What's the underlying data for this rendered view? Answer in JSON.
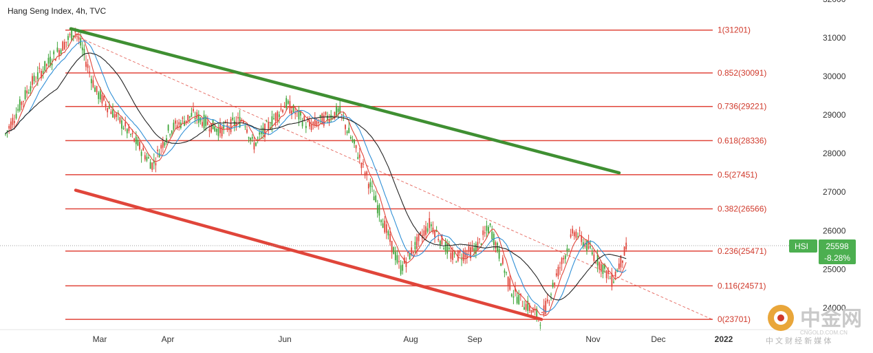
{
  "header": {
    "title": "Hang Seng Index, 4h, TVC"
  },
  "price_tag": {
    "symbol": "HSI",
    "price": "25598",
    "change": "-8.28%"
  },
  "watermark": {
    "name": "中金网",
    "domain": "CNGOLD.COM.CN",
    "tagline": "中 文 财 经 新 媒 体"
  },
  "colors": {
    "background": "#ffffff",
    "fib_line": "#e0453a",
    "upper_trend": "#3f8f32",
    "lower_trend": "#e0453a",
    "candle_up": "#3fa63a",
    "candle_down": "#e0453a",
    "ma_fast": "#e0453a",
    "ma_mid": "#2f8fd6",
    "ma_slow": "#222222",
    "price_tag": "#4caf50",
    "watermark": "#c9c9c9"
  },
  "chart_data": {
    "type": "line",
    "title": "Hang Seng Index, 4h, TVC",
    "x_labels": [
      "Mar",
      "Apr",
      "Jun",
      "Aug",
      "Sep",
      "Nov",
      "Dec",
      "2022"
    ],
    "y_ticks": [
      24000,
      25000,
      26000,
      27000,
      28000,
      29000,
      30000,
      31000,
      32000
    ],
    "ylim": [
      23200,
      32100
    ],
    "y_axis_position": "right",
    "last_price": 25598,
    "fibonacci_levels": [
      {
        "ratio": "1",
        "value": 31201,
        "label": "1(31201)"
      },
      {
        "ratio": "0.852",
        "value": 30091,
        "label": "0.852(30091)"
      },
      {
        "ratio": "0.736",
        "value": 29221,
        "label": "0.736(29221)"
      },
      {
        "ratio": "0.618",
        "value": 28336,
        "label": "0.618(28336)"
      },
      {
        "ratio": "0.5",
        "value": 27451,
        "label": "0.5(27451)"
      },
      {
        "ratio": "0.382",
        "value": 26566,
        "label": "0.382(26566)"
      },
      {
        "ratio": "0.236",
        "value": 25471,
        "label": "0.236(25471)"
      },
      {
        "ratio": "0.116",
        "value": 24571,
        "label": "0.116(24571)"
      },
      {
        "ratio": "0",
        "value": 23701,
        "label": "0(23701)"
      }
    ],
    "price_path": [
      [
        "early Feb",
        28500
      ],
      [
        "mid Feb",
        29800
      ],
      [
        "late Feb",
        31201
      ],
      [
        "early Mar",
        29600
      ],
      [
        "mid Mar",
        28600
      ],
      [
        "late Mar",
        27700
      ],
      [
        "early Apr",
        28600
      ],
      [
        "mid Apr",
        29000
      ],
      [
        "late Apr",
        28600
      ],
      [
        "mid May",
        28900
      ],
      [
        "late May",
        28200
      ],
      [
        "early Jun",
        29300
      ],
      [
        "mid Jun",
        28700
      ],
      [
        "late Jun",
        29100
      ],
      [
        "mid Jul",
        27800
      ],
      [
        "late Jul",
        25000
      ],
      [
        "early Aug",
        26200
      ],
      [
        "mid Aug",
        25300
      ],
      [
        "late Aug",
        25500
      ],
      [
        "early Sep",
        26100
      ],
      [
        "mid Sep",
        24400
      ],
      [
        "late Sep",
        23701
      ],
      [
        "early Oct",
        24800
      ],
      [
        "mid Oct",
        26000
      ],
      [
        "late Oct",
        25500
      ],
      [
        "early Nov",
        24700
      ],
      [
        "mid Nov",
        25598
      ]
    ],
    "trendlines": [
      {
        "name": "upper",
        "from": [
          "late Feb",
          31201
        ],
        "to": [
          "late Nov",
          27500
        ]
      },
      {
        "name": "lower",
        "from": [
          "late Feb",
          27050
        ],
        "to": [
          "late Sep",
          23701
        ]
      },
      {
        "name": "diagonal-dashed",
        "from": [
          "late Feb",
          31050
        ],
        "to": [
          "late Dec",
          23701
        ]
      }
    ],
    "grid": false,
    "legend": "none"
  }
}
